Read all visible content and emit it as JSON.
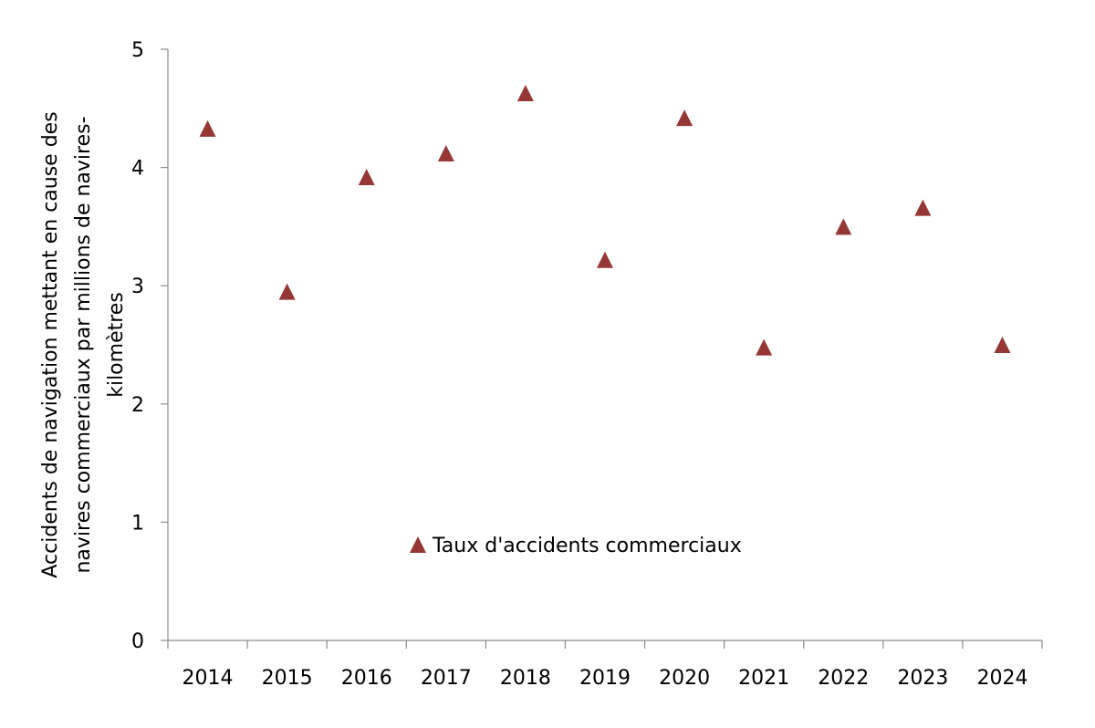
{
  "chart_data": {
    "type": "scatter",
    "categories": [
      "2014",
      "2015",
      "2016",
      "2017",
      "2018",
      "2019",
      "2020",
      "2021",
      "2022",
      "2023",
      "2024"
    ],
    "series": [
      {
        "name": "Taux d'accidents commerciaux",
        "marker": "triangle",
        "color": "#953735",
        "values": [
          4.33,
          2.95,
          3.92,
          4.12,
          4.63,
          3.22,
          4.42,
          2.48,
          3.5,
          3.66,
          2.5
        ]
      }
    ],
    "ylabel_lines": [
      "Accidents de navigation mettant en cause des",
      "navires commerciaux par millions de navires-",
      "kilomètres"
    ],
    "ylim": [
      0,
      5
    ],
    "yticks": [
      "0",
      "1",
      "2",
      "3",
      "4",
      "5"
    ],
    "grid": false,
    "legend_position": "inside-bottom-center",
    "axis_color": "#8c8c8c"
  }
}
